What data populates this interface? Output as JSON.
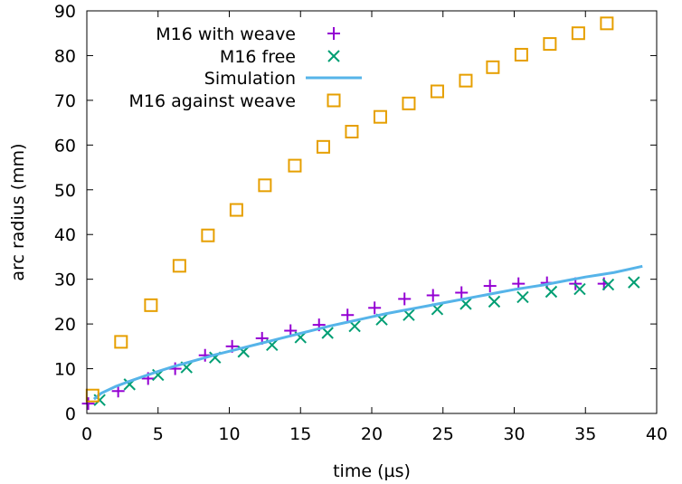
{
  "chart_data": {
    "type": "scatter",
    "title": "",
    "xlabel": "time (µs)",
    "ylabel": "arc radius (mm)",
    "xlim": [
      0,
      40
    ],
    "ylim": [
      0,
      90
    ],
    "xticks": [
      0,
      5,
      10,
      15,
      20,
      25,
      30,
      35,
      40
    ],
    "yticks": [
      0,
      10,
      20,
      30,
      40,
      50,
      60,
      70,
      80,
      90
    ],
    "legend_position": "top-left",
    "series": [
      {
        "name": "M16 with weave",
        "kind": "points",
        "marker": "plus",
        "color": "#9400d3",
        "x": [
          0.1,
          2.2,
          4.3,
          6.2,
          8.3,
          10.2,
          12.3,
          14.3,
          16.3,
          18.3,
          20.2,
          22.3,
          24.3,
          26.3,
          28.3,
          30.3,
          32.3,
          34.3,
          36.3
        ],
        "y": [
          2.2,
          5.0,
          7.8,
          10.0,
          13.0,
          15.0,
          16.8,
          18.5,
          19.8,
          22.0,
          23.6,
          25.6,
          26.4,
          27.0,
          28.5,
          29.0,
          29.2,
          29.0,
          29.0
        ]
      },
      {
        "name": "M16 free",
        "kind": "points",
        "marker": "cross",
        "color": "#009e73",
        "x": [
          0.9,
          3.0,
          5.0,
          7.0,
          9.0,
          11.0,
          13.0,
          15.0,
          16.9,
          18.8,
          20.7,
          22.6,
          24.6,
          26.6,
          28.6,
          30.6,
          32.6,
          34.6,
          36.6,
          38.4
        ],
        "y": [
          3.0,
          6.5,
          8.6,
          10.3,
          12.5,
          13.8,
          15.3,
          17.0,
          18.0,
          19.5,
          21.0,
          22.0,
          23.3,
          24.5,
          25.0,
          26.0,
          27.2,
          27.8,
          28.8,
          29.3
        ]
      },
      {
        "name": "Simulation",
        "kind": "line",
        "color": "#56b4e9",
        "x": [
          0.5,
          1,
          2,
          3,
          4,
          5,
          6,
          7,
          8,
          9,
          10,
          11,
          12,
          13,
          14,
          15,
          16,
          17,
          18,
          19,
          20,
          21,
          22,
          23,
          24,
          25,
          26,
          27,
          28,
          29,
          30,
          31,
          32,
          33,
          34,
          35,
          36,
          37,
          38,
          39
        ],
        "y": [
          3.2,
          4.5,
          6.0,
          7.2,
          8.3,
          9.4,
          10.4,
          11.3,
          12.2,
          13.1,
          13.9,
          14.7,
          15.5,
          16.3,
          17.1,
          17.9,
          18.7,
          19.5,
          20.2,
          20.9,
          21.6,
          22.3,
          22.9,
          23.5,
          24.1,
          24.7,
          25.3,
          25.9,
          26.5,
          27.1,
          27.7,
          28.2,
          28.7,
          29.3,
          29.9,
          30.5,
          31.0,
          31.5,
          32.2,
          32.9
        ]
      },
      {
        "name": "M16 against weave",
        "kind": "points",
        "marker": "square",
        "color": "#e69f00",
        "x": [
          0.4,
          2.4,
          4.5,
          6.5,
          8.5,
          10.5,
          12.5,
          14.6,
          16.6,
          18.6,
          20.6,
          22.6,
          24.6,
          26.6,
          28.5,
          30.5,
          32.5,
          34.5,
          36.5
        ],
        "y": [
          4.0,
          16.0,
          24.2,
          33.0,
          39.8,
          45.5,
          51.0,
          55.4,
          59.6,
          63.0,
          66.3,
          69.3,
          72.0,
          74.4,
          77.4,
          80.2,
          82.6,
          85.0,
          87.2
        ]
      }
    ]
  }
}
